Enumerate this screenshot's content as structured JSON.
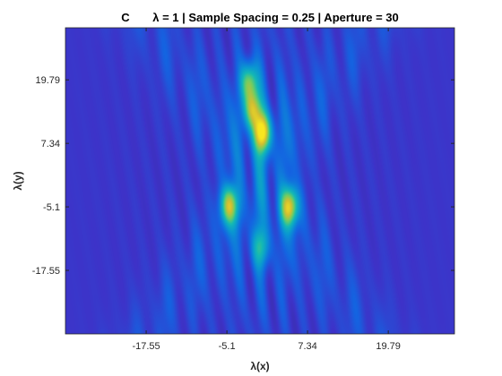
{
  "chart_data": {
    "type": "heatmap",
    "title_panel": "C",
    "title": "λ = 1 | Sample Spacing = 0.25 | Aperture = 30",
    "xlabel": "λ(x)",
    "ylabel": "λ(y)",
    "xlim": [
      -30,
      30
    ],
    "ylim": [
      -30,
      30
    ],
    "xticks": [
      -17.55,
      -5.1,
      7.34,
      19.79
    ],
    "yticks": [
      -17.55,
      -5.1,
      7.34,
      19.79
    ],
    "xtick_labels": [
      "-17.55",
      "-5.1",
      "7.34",
      "19.79"
    ],
    "ytick_labels": [
      "-17.55",
      "-5.1",
      "7.34",
      "19.79"
    ],
    "colormap": "parula",
    "grid": false,
    "hotspots": [
      {
        "x": 0.3,
        "y": 9.5,
        "intensity": 1.0
      },
      {
        "x": -1.7,
        "y": 19.5,
        "intensity": 0.72
      },
      {
        "x": -1.2,
        "y": 14.0,
        "intensity": 0.8
      },
      {
        "x": -4.8,
        "y": -4.8,
        "intensity": 0.82
      },
      {
        "x": 4.5,
        "y": -5.0,
        "intensity": 0.9
      },
      {
        "x": 0.0,
        "y": -13.0,
        "intensity": 0.42
      }
    ],
    "colors": {
      "background_low": "#3f2fc4",
      "high": "#f5e82a",
      "frame": "#262626"
    }
  }
}
